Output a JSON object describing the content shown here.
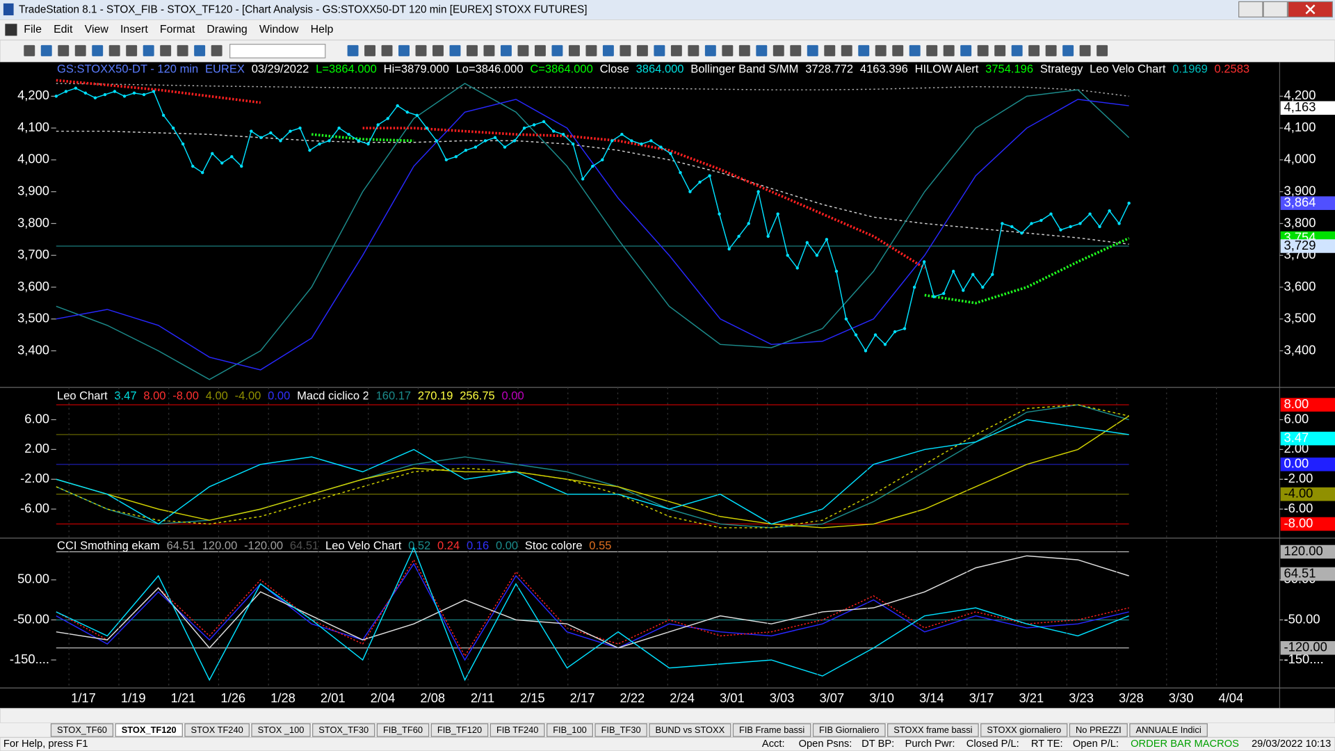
{
  "window": {
    "title": "TradeStation 8.1 - STOX_FIB - STOX_TF120 - [Chart Analysis - GS:STOXX50-DT  120 min  [EUREX] STOXX FUTURES]",
    "menu": [
      "File",
      "Edit",
      "View",
      "Insert",
      "Format",
      "Drawing",
      "Window",
      "Help"
    ]
  },
  "date_axis": [
    "1/17",
    "1/19",
    "1/21",
    "1/26",
    "1/28",
    "2/01",
    "2/04",
    "2/08",
    "2/11",
    "2/15",
    "2/17",
    "2/22",
    "2/24",
    "3/01",
    "3/03",
    "3/07",
    "3/10",
    "3/14",
    "3/17",
    "3/21",
    "3/23",
    "3/28",
    "3/30",
    "4/04"
  ],
  "chart_data": [
    {
      "type": "line",
      "header": [
        {
          "text": "GS:STOXX50-DT - 120 min",
          "color": "#5a7cff"
        },
        {
          "text": "EUREX",
          "color": "#5a7cff"
        },
        {
          "text": "03/29/2022",
          "color": "#ffffff"
        },
        {
          "text": "L=3864.000",
          "color": "#00ff00"
        },
        {
          "text": "Hi=3879.000",
          "color": "#ffffff"
        },
        {
          "text": "Lo=3846.000",
          "color": "#ffffff"
        },
        {
          "text": "C=3864.000",
          "color": "#00ff00"
        },
        {
          "text": "Close",
          "color": "#ffffff"
        },
        {
          "text": "3864.000",
          "color": "#00e0e0"
        },
        {
          "text": "Bollinger Band S/MM",
          "color": "#ffffff"
        },
        {
          "text": "3728.772",
          "color": "#ffffff"
        },
        {
          "text": "4163.396",
          "color": "#ffffff"
        },
        {
          "text": "HILOW Alert",
          "color": "#ffffff"
        },
        {
          "text": "3754.196",
          "color": "#00ff00"
        },
        {
          "text": "Strategy",
          "color": "#ffffff"
        },
        {
          "text": "Leo Velo Chart",
          "color": "#ffffff"
        },
        {
          "text": "0.1969",
          "color": "#00c0c0"
        },
        {
          "text": "0.2583",
          "color": "#ff3030"
        }
      ],
      "ylim": [
        3285,
        4307
      ],
      "yticks": [
        {
          "value": 4200,
          "label": "4,200"
        },
        {
          "value": 4100,
          "label": "4,100"
        },
        {
          "value": 4000,
          "label": "4,000"
        },
        {
          "value": 3900,
          "label": "3,900"
        },
        {
          "value": 3800,
          "label": "3,800"
        },
        {
          "value": 3700,
          "label": "3,700"
        },
        {
          "value": 3600,
          "label": "3,600"
        },
        {
          "value": 3500,
          "label": "3,500"
        },
        {
          "value": 3400,
          "label": "3,400"
        }
      ],
      "markers": [
        {
          "value": 4163,
          "label": "4,163",
          "color": "#ffffff"
        },
        {
          "value": 3864,
          "label": "3,864",
          "color": "#5050ff"
        },
        {
          "value": 3754,
          "label": "3,754",
          "color": "#00e000"
        },
        {
          "value": 3729,
          "label": "3,729",
          "color": "#d0e4ff"
        }
      ],
      "hlines": [
        {
          "value": 3729,
          "color": "#1e8c8c"
        }
      ],
      "series": [
        {
          "color": "#b0b0b0",
          "dash": "2 3",
          "values": [
            4240,
            4238,
            4235,
            4232,
            4230,
            4228,
            4226,
            4225,
            4226,
            4228,
            4228,
            4226,
            4224,
            4222,
            4220,
            4220,
            4222,
            4226,
            4230,
            4228,
            4220,
            4200
          ]
        },
        {
          "color": "#d0d0d0",
          "dash": "3 3",
          "values": [
            4090,
            4090,
            4085,
            4080,
            4070,
            4060,
            4055,
            4055,
            4060,
            4060,
            4050,
            4030,
            4000,
            3960,
            3910,
            3860,
            3820,
            3800,
            3785,
            3770,
            3755,
            3735
          ]
        },
        {
          "color": "#1c8c8c",
          "values": [
            3540,
            3480,
            3400,
            3310,
            3400,
            3600,
            3900,
            4130,
            4240,
            4150,
            3980,
            3750,
            3540,
            3420,
            3410,
            3470,
            3650,
            3900,
            4100,
            4200,
            4220,
            4070
          ]
        },
        {
          "color": "#2828ff",
          "values": [
            3500,
            3530,
            3480,
            3380,
            3340,
            3440,
            3700,
            3980,
            4150,
            4190,
            4100,
            3880,
            3700,
            3500,
            3420,
            3430,
            3500,
            3700,
            3950,
            4100,
            4190,
            4170
          ]
        },
        {
          "color": "#ff2020",
          "dash": "2 2",
          "width": 3,
          "values": [
            4250,
            4235,
            4220,
            4200,
            4180,
            null,
            4100,
            4100,
            4090,
            4080,
            4075,
            4060,
            4030,
            3970,
            3900,
            3830,
            3760,
            3660,
            null,
            null,
            null,
            null
          ]
        },
        {
          "color": "#20ff20",
          "dash": "2 2",
          "width": 3,
          "values": [
            null,
            null,
            null,
            null,
            null,
            4080,
            4065,
            4060,
            null,
            null,
            null,
            null,
            null,
            null,
            null,
            null,
            null,
            3575,
            3550,
            3600,
            3680,
            3754
          ]
        },
        {
          "color": "#00e0ff",
          "dots": true,
          "values": [
            4200,
            4215,
            4225,
            4210,
            4195,
            4205,
            4215,
            4200,
            4210,
            4205,
            4215,
            4140,
            4100,
            4050,
            3980,
            3960,
            4020,
            3990,
            4010,
            3980,
            4090,
            4070,
            4085,
            4060,
            4090,
            4100,
            4030,
            4050,
            4060,
            4100,
            4080,
            4060,
            4050,
            4110,
            4130,
            4170,
            4150,
            4140,
            4100,
            4060,
            4000,
            4010,
            4030,
            4040,
            4060,
            4070,
            4040,
            4060,
            4100,
            4110,
            4120,
            4090,
            4080,
            4050,
            3940,
            3980,
            4000,
            4060,
            4080,
            4060,
            4050,
            4060,
            4040,
            4020,
            3960,
            3900,
            3930,
            3950,
            3830,
            3720,
            3760,
            3800,
            3900,
            3760,
            3830,
            3700,
            3660,
            3740,
            3700,
            3750,
            3650,
            3500,
            3450,
            3400,
            3450,
            3420,
            3460,
            3470,
            3600,
            3680,
            3570,
            3580,
            3650,
            3590,
            3640,
            3600,
            3640,
            3800,
            3790,
            3770,
            3800,
            3810,
            3830,
            3780,
            3790,
            3800,
            3830,
            3790,
            3840,
            3800,
            3864
          ]
        }
      ]
    },
    {
      "type": "line",
      "header": [
        {
          "text": "Leo Chart",
          "color": "#ffffff"
        },
        {
          "text": "3.47",
          "color": "#00e0e0"
        },
        {
          "text": "8.00",
          "color": "#ff3030"
        },
        {
          "text": "-8.00",
          "color": "#ff3030"
        },
        {
          "text": "4.00",
          "color": "#909000"
        },
        {
          "text": "-4.00",
          "color": "#909000"
        },
        {
          "text": "0.00",
          "color": "#3030ff"
        },
        {
          "text": "Macd ciclico 2",
          "color": "#ffffff"
        },
        {
          "text": "160.17",
          "color": "#1c8c8c"
        },
        {
          "text": "270.19",
          "color": "#ffff40"
        },
        {
          "text": "256.75",
          "color": "#ffff40"
        },
        {
          "text": "0.00",
          "color": "#c000c0"
        }
      ],
      "ylim": [
        -9.9,
        10.1
      ],
      "yticks": [
        {
          "value": 6,
          "label": "6.00"
        },
        {
          "value": 2,
          "label": "2.00"
        },
        {
          "value": -2,
          "label": "-2.00"
        },
        {
          "value": -6,
          "label": "-6.00"
        }
      ],
      "markers": [
        {
          "value": 8,
          "label": "8.00",
          "color": "#ff0000"
        },
        {
          "value": 3.47,
          "label": "3.47",
          "color": "#00ffff"
        },
        {
          "value": 0,
          "label": "0.00",
          "color": "#2020ff"
        },
        {
          "value": -4,
          "label": "-4.00",
          "color": "#909000"
        },
        {
          "value": -8,
          "label": "-8.00",
          "color": "#ff0000"
        }
      ],
      "hlines": [
        {
          "value": 8,
          "color": "#c00000"
        },
        {
          "value": 4,
          "color": "#707000"
        },
        {
          "value": 0,
          "color": "#2020c0"
        },
        {
          "value": -4,
          "color": "#707000"
        },
        {
          "value": -8,
          "color": "#c00000"
        }
      ],
      "series": [
        {
          "color": "#1c8c8c",
          "values": [
            -3,
            -6,
            -8,
            -7.5,
            -6,
            -4,
            -2,
            0,
            1,
            0,
            -1,
            -3,
            -6,
            -8,
            -8.5,
            -8,
            -5,
            -1,
            3,
            7,
            8,
            6
          ]
        },
        {
          "color": "#d0d000",
          "dash": "3 3",
          "values": [
            -3,
            -6,
            -7.5,
            -8,
            -7,
            -5,
            -3,
            -1,
            -0.5,
            -1,
            -2,
            -4,
            -7,
            -8.5,
            -8.5,
            -7.5,
            -4,
            0,
            4,
            7.5,
            8,
            6.5
          ]
        },
        {
          "color": "#d0d000",
          "values": [
            -2,
            -4,
            -6,
            -7.5,
            -6,
            -4,
            -2,
            -0.5,
            -1,
            -1,
            -2,
            -3,
            -5,
            -7,
            -8,
            -8.5,
            -8,
            -6,
            -3,
            0,
            2,
            6.5
          ]
        },
        {
          "color": "#00e0ff",
          "values": [
            -2,
            -4,
            -8,
            -3,
            0,
            1,
            -1,
            2,
            -2,
            -1,
            -4,
            -4,
            -6,
            -4,
            -8,
            -6,
            0,
            2,
            3,
            6,
            5,
            4
          ]
        }
      ]
    },
    {
      "type": "line",
      "header": [
        {
          "text": "CCI Smothing ekam",
          "color": "#ffffff"
        },
        {
          "text": "64.51",
          "color": "#a0a0a0"
        },
        {
          "text": "120.00",
          "color": "#a0a0a0"
        },
        {
          "text": "-120.00",
          "color": "#a0a0a0"
        },
        {
          "text": "64.51",
          "color": "#505050"
        },
        {
          "text": "Leo Velo Chart",
          "color": "#ffffff"
        },
        {
          "text": "0.52",
          "color": "#1c8c8c"
        },
        {
          "text": "0.24",
          "color": "#ff3030"
        },
        {
          "text": "0.16",
          "color": "#3030ff"
        },
        {
          "text": "0.00",
          "color": "#1c8c8c"
        },
        {
          "text": "Stoc colore",
          "color": "#ffffff"
        },
        {
          "text": "0.55",
          "color": "#e07020"
        }
      ],
      "ylim": [
        -220,
        152
      ],
      "yticks": [
        {
          "value": 50,
          "label": "50.00"
        },
        {
          "value": -50,
          "label": "-50.00"
        },
        {
          "value": -150,
          "label": "-150...."
        }
      ],
      "markers": [
        {
          "value": 120,
          "label": "120.00",
          "color": "#b0b0b0"
        },
        {
          "value": 64.51,
          "label": "64.51",
          "color": "#b0b0b0"
        },
        {
          "value": -120,
          "label": "-120.00",
          "color": "#b0b0b0"
        }
      ],
      "hlines": [
        {
          "value": 120,
          "color": "#c0c0c0"
        },
        {
          "value": -50,
          "color": "#1c8c8c"
        },
        {
          "value": -120,
          "color": "#c0c0c0"
        }
      ],
      "series": [
        {
          "color": "#2828ff",
          "values": [
            -40,
            -110,
            20,
            -100,
            40,
            -60,
            -100,
            90,
            -150,
            60,
            -80,
            -120,
            -60,
            -80,
            -90,
            -60,
            0,
            -80,
            -40,
            -70,
            -60,
            -30
          ]
        },
        {
          "color": "#ff2020",
          "dash": "2 2",
          "values": [
            -30,
            -100,
            30,
            -90,
            50,
            -50,
            -110,
            100,
            -140,
            70,
            -70,
            -110,
            -50,
            -90,
            -80,
            -50,
            10,
            -70,
            -30,
            -60,
            -50,
            -20
          ]
        },
        {
          "color": "#e0e0e0",
          "values": [
            -80,
            -100,
            30,
            -120,
            20,
            -40,
            -100,
            -60,
            0,
            -50,
            -60,
            -120,
            -80,
            -40,
            -60,
            -30,
            -20,
            20,
            80,
            110,
            100,
            60
          ]
        },
        {
          "color": "#00e0ff",
          "values": [
            -30,
            -90,
            60,
            -200,
            40,
            -50,
            -150,
            130,
            -200,
            40,
            -170,
            -80,
            -170,
            -160,
            -150,
            -190,
            -120,
            -40,
            -20,
            -60,
            -90,
            -40
          ]
        }
      ]
    }
  ],
  "tabs": [
    "STOX_TF60",
    "STOX_TF120",
    "STOX TF240",
    "STOX _100",
    "STOX_TF30",
    "FIB_TF60",
    "FIB_TF120",
    "FIB TF240",
    "FIB_100",
    "FIB_TF30",
    "BUND vs STOXX",
    "FIB Frame bassi",
    "FIB Giornaliero",
    "STOXX frame bassi",
    "STOXX giornaliero",
    "No PREZZI",
    "ANNUALE Indici"
  ],
  "active_tab": "STOX_TF120",
  "status_bar": [
    "For Help, press F1",
    "Acct:",
    "Open Psns:",
    "DT BP:",
    "Purch Pwr:",
    "Closed P/L:",
    "RT TE:",
    "Open P/L:",
    "ORDER BAR MACROS",
    "29/03/2022 10:13"
  ]
}
